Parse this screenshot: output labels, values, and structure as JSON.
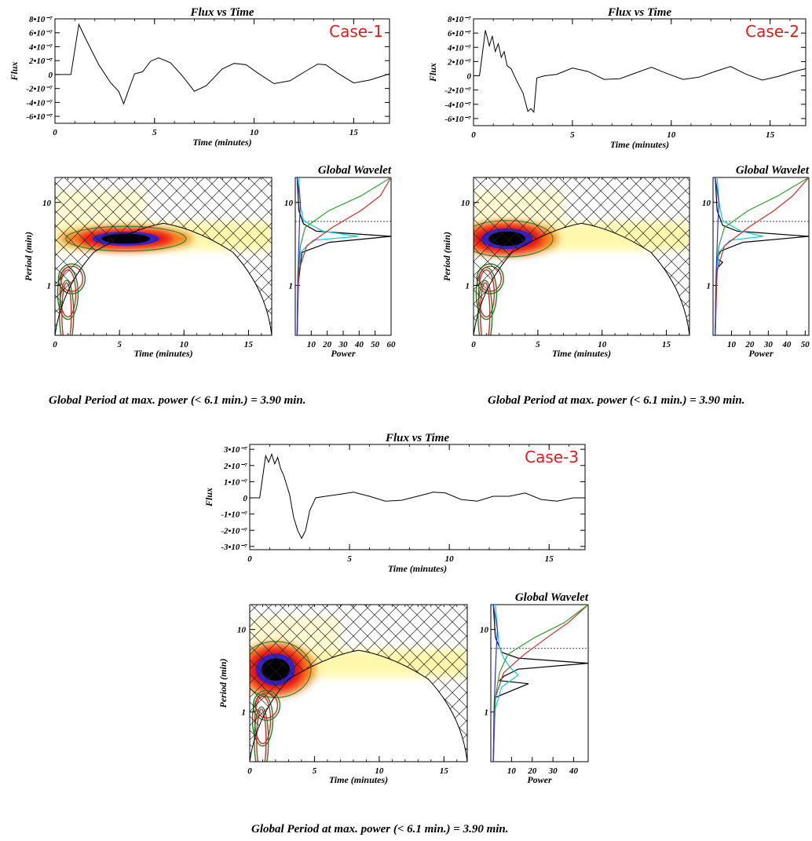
{
  "chart_data": [
    {
      "type": "line",
      "case_label": "Case-1",
      "title": "Flux vs Time",
      "xlabel": "Time (minutes)",
      "ylabel": "Flux",
      "xlim": [
        0,
        16.8
      ],
      "ylim": [
        -7e-07,
        8e-07
      ],
      "x_ticks": [
        "0",
        "5",
        "10",
        "15"
      ],
      "y_ticks": [
        "8•10⁻⁷",
        "6•10⁻⁷",
        "4•10⁻⁷",
        "2•10⁻⁷",
        "0",
        "-2•10⁻⁷",
        "-4•10⁻⁷",
        "-6•10⁻⁷"
      ],
      "x": [
        0,
        0.8,
        1.2,
        1.6,
        2.2,
        2.8,
        3.2,
        3.45,
        3.7,
        4.0,
        4.4,
        4.8,
        5.2,
        5.8,
        6.4,
        7.0,
        7.6,
        8.4,
        9.0,
        9.6,
        10.2,
        11.0,
        11.8,
        12.6,
        13.2,
        13.6,
        14.2,
        15.0,
        15.8,
        16.8
      ],
      "y": [
        0,
        0,
        7.2e-07,
        4.8e-07,
        1.4e-07,
        -1.2e-07,
        -2.4e-07,
        -4.2e-07,
        -2.2e-07,
        1e-08,
        4e-08,
        1.9e-07,
        2.4e-07,
        1.7e-07,
        -2e-08,
        -2.4e-07,
        -1.6e-07,
        8e-08,
        1.6e-07,
        1.4e-07,
        2e-08,
        -1.3e-07,
        -9e-08,
        5e-08,
        1.5e-07,
        1.4e-07,
        2e-08,
        -1.2e-07,
        -8e-08,
        1e-08
      ]
    },
    {
      "type": "heatmap",
      "case_label": "Case-1",
      "xlabel": "Time (minutes)",
      "ylabel": "Period (min)",
      "xlim": [
        0,
        16.8
      ],
      "ylim": [
        0.25,
        20
      ],
      "y_scale": "log",
      "x_ticks": [
        "0",
        "5",
        "10",
        "15"
      ],
      "y_ticks": [
        "10",
        "1"
      ],
      "peak_period": 3.9,
      "global_wavelet": {
        "title": "Global Wavelet",
        "xlabel": "Power",
        "x_ticks": [
          "10",
          "20",
          "30",
          "40",
          "50",
          "60"
        ],
        "xlim": [
          0,
          60
        ],
        "series": [
          {
            "color": "#000000",
            "period": [
              0.25,
              1.0,
              2.5,
              3.3,
              3.9,
              4.5,
              5.5,
              8,
              20
            ],
            "power": [
              0,
              0.5,
              3,
              20,
              60,
              12,
              4,
              1,
              0
            ]
          },
          {
            "color": "#00cfe0",
            "period": [
              0.25,
              1.0,
              2.5,
              3.5,
              3.9,
              4.5,
              6.0,
              9,
              20
            ],
            "power": [
              0,
              0.5,
              2,
              10,
              38,
              16,
              4,
              2,
              1
            ]
          },
          {
            "color": "#d62728",
            "period": [
              0.25,
              1.5,
              3,
              5,
              8,
              12,
              20
            ],
            "power": [
              0,
              1,
              6,
              22,
              40,
              52,
              60
            ]
          },
          {
            "color": "#2ca02c",
            "period": [
              0.25,
              1.5,
              3,
              5,
              8,
              12,
              20
            ],
            "power": [
              0,
              0.5,
              2,
              5,
              20,
              40,
              60
            ]
          },
          {
            "color": "#2d2dd8",
            "period": [
              0.25,
              1,
              3,
              6,
              10,
              20
            ],
            "power": [
              0,
              0.3,
              1,
              1.5,
              2,
              0
            ]
          }
        ]
      }
    },
    {
      "type": "line",
      "case_label": "Case-2",
      "title": "Flux vs Time",
      "xlabel": "Time (minutes)",
      "ylabel": "Flux",
      "xlim": [
        0,
        16.8
      ],
      "ylim": [
        -7e-07,
        8e-07
      ],
      "x_ticks": [
        "0",
        "5",
        "10",
        "15"
      ],
      "y_ticks": [
        "8•10⁻⁷",
        "6•10⁻⁷",
        "4•10⁻⁷",
        "2•10⁻⁷",
        "0",
        "-2•10⁻⁷",
        "-4•10⁻⁷",
        "-6•10⁻⁷"
      ],
      "x": [
        0,
        0.3,
        0.6,
        0.8,
        0.95,
        1.1,
        1.25,
        1.4,
        1.55,
        1.7,
        1.9,
        2.2,
        2.5,
        2.75,
        2.9,
        3.05,
        3.2,
        3.6,
        4.2,
        5.0,
        5.8,
        6.6,
        7.4,
        8.2,
        9.0,
        9.8,
        10.6,
        11.4,
        12.2,
        13.0,
        13.8,
        14.6,
        15.4,
        16.2,
        16.8
      ],
      "y": [
        0,
        0,
        6.4e-07,
        4.2e-07,
        5.6e-07,
        3.4e-07,
        4.5e-07,
        2.6e-07,
        3.4e-07,
        1.4e-07,
        1e-07,
        -8e-08,
        -2.4e-07,
        -5e-07,
        -4.6e-07,
        -5.1e-07,
        -3e-08,
        0,
        2e-08,
        1.1e-07,
        6e-08,
        -5e-08,
        -4e-08,
        4e-08,
        1.2e-07,
        3e-08,
        -5e-08,
        -2e-08,
        6e-08,
        1.3e-07,
        2e-08,
        -6e-08,
        -1e-08,
        6e-08,
        1e-07
      ]
    },
    {
      "type": "heatmap",
      "case_label": "Case-2",
      "xlabel": "Time (minutes)",
      "ylabel": "Period (min)",
      "xlim": [
        0,
        16.8
      ],
      "ylim": [
        0.25,
        20
      ],
      "y_scale": "log",
      "x_ticks": [
        "0",
        "5",
        "10",
        "15"
      ],
      "y_ticks": [
        "10",
        "1"
      ],
      "peak_period": 3.9,
      "global_wavelet": {
        "title": "Global Wavelet",
        "xlabel": "Power",
        "x_ticks": [
          "10",
          "20",
          "30",
          "40",
          "50"
        ],
        "xlim": [
          0,
          52
        ],
        "series": [
          {
            "color": "#000000",
            "period": [
              0.25,
              1.0,
              1.6,
              1.9,
              2.1,
              2.6,
              3.3,
              3.9,
              4.5,
              5.3,
              8,
              20
            ],
            "power": [
              0,
              0.5,
              1,
              4,
              1,
              3,
              15,
              52,
              12,
              4,
              1,
              0
            ]
          },
          {
            "color": "#00cfe0",
            "period": [
              0.25,
              1.0,
              2.5,
              3.5,
              3.9,
              4.5,
              6.0,
              10,
              20
            ],
            "power": [
              0,
              0.5,
              2,
              8,
              26,
              14,
              4,
              2,
              1
            ]
          },
          {
            "color": "#d62728",
            "period": [
              0.25,
              1.5,
              3,
              5,
              8,
              12,
              20
            ],
            "power": [
              0,
              1,
              5,
              18,
              32,
              42,
              52
            ]
          },
          {
            "color": "#2ca02c",
            "period": [
              0.25,
              1.5,
              3,
              5,
              8,
              12,
              20
            ],
            "power": [
              0,
              0.5,
              2,
              5,
              18,
              34,
              52
            ]
          },
          {
            "color": "#2d2dd8",
            "period": [
              0.25,
              1,
              3,
              6,
              10,
              20
            ],
            "power": [
              0,
              0.3,
              1,
              1.5,
              2,
              0
            ]
          }
        ]
      }
    },
    {
      "type": "line",
      "case_label": "Case-3",
      "title": "Flux vs Time",
      "xlabel": "Time (minutes)",
      "ylabel": "Flux",
      "xlim": [
        0,
        16.8
      ],
      "ylim": [
        -3.2e-07,
        3.3e-07
      ],
      "x_ticks": [
        "0",
        "5",
        "10",
        "15"
      ],
      "y_ticks": [
        "3•10⁻⁷",
        "2•10⁻⁷",
        "1•10⁻⁷",
        "0",
        "-1•10⁻⁷",
        "-2•10⁻⁷",
        "-3•10⁻⁷"
      ],
      "x": [
        0,
        0.5,
        0.8,
        0.95,
        1.1,
        1.25,
        1.4,
        1.55,
        1.7,
        1.85,
        2.0,
        2.2,
        2.4,
        2.6,
        2.8,
        3.0,
        3.3,
        3.8,
        4.4,
        5.2,
        6.0,
        6.8,
        7.6,
        8.4,
        9.2,
        9.8,
        10.6,
        11.4,
        12.2,
        13.0,
        13.8,
        14.6,
        15.4,
        16.2,
        16.8
      ],
      "y": [
        0,
        0,
        2.6e-07,
        2.2e-07,
        2.7e-07,
        2.1e-07,
        2.5e-07,
        1.8e-07,
        1.4e-07,
        8e-08,
        2e-08,
        -1.2e-07,
        -2e-07,
        -2.5e-07,
        -2e-07,
        -8e-08,
        0,
        1e-08,
        2e-08,
        3.5e-08,
        1e-08,
        -2e-08,
        -1.5e-08,
        1e-08,
        3.5e-08,
        3e-08,
        -1e-08,
        -2e-08,
        1e-08,
        1e-08,
        3e-08,
        -1e-08,
        -2e-08,
        0,
        0
      ]
    },
    {
      "type": "heatmap",
      "case_label": "Case-3",
      "xlabel": "Time (minutes)",
      "ylabel": "Period (min)",
      "xlim": [
        0,
        16.8
      ],
      "ylim": [
        0.25,
        20
      ],
      "y_scale": "log",
      "x_ticks": [
        "0",
        "5",
        "10",
        "15"
      ],
      "y_ticks": [
        "10",
        "1"
      ],
      "peak_period": 3.9,
      "global_wavelet": {
        "title": "Global Wavelet",
        "xlabel": "Power",
        "x_ticks": [
          "10",
          "20",
          "30",
          "40"
        ],
        "xlim": [
          0,
          47
        ],
        "series": [
          {
            "color": "#000000",
            "period": [
              0.25,
              1.0,
              1.5,
              2.2,
              2.4,
              2.7,
              3.3,
              3.9,
              4.5,
              5.3,
              8,
              20
            ],
            "power": [
              0,
              0.5,
              1,
              17,
              3,
              5,
              12,
              47,
              12,
              4,
              1,
              0
            ]
          },
          {
            "color": "#00cfe0",
            "period": [
              0.25,
              1.0,
              2.0,
              2.8,
              3.5,
              4.5,
              6.0,
              10,
              20
            ],
            "power": [
              0,
              0.5,
              4,
              12,
              8,
              5,
              3,
              2,
              1
            ]
          },
          {
            "color": "#d62728",
            "period": [
              0.25,
              1.5,
              3,
              5,
              8,
              12,
              20
            ],
            "power": [
              0,
              1,
              5,
              15,
              26,
              36,
              47
            ]
          },
          {
            "color": "#2ca02c",
            "period": [
              0.25,
              1.5,
              3,
              5,
              8,
              12,
              20
            ],
            "power": [
              0,
              1,
              3,
              7,
              20,
              34,
              47
            ]
          },
          {
            "color": "#2d2dd8",
            "period": [
              0.25,
              1,
              3,
              6,
              10,
              20
            ],
            "power": [
              0,
              0.3,
              1,
              1.5,
              2,
              0
            ]
          }
        ]
      }
    }
  ],
  "captions": {
    "case1": "Global Period at max. power (< 6.1 min.)  = 3.90 min.",
    "case2": "Global Period at max. power (< 6.1 min.)  = 3.90 min.",
    "case3": "Global Period at max. power (< 6.1 min.)  = 3.90 min."
  }
}
